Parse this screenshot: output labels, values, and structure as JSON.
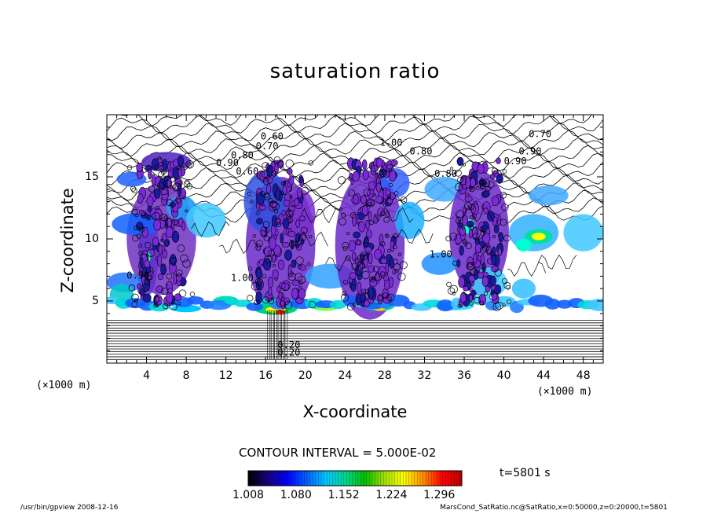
{
  "chart_data": {
    "type": "heatmap",
    "title": "saturation ratio",
    "xlabel": "X-coordinate",
    "ylabel": "Z-coordinate",
    "x_unit": "(×1000 m)",
    "y_unit": "(×1000 m)",
    "xlim": [
      0,
      50
    ],
    "ylim": [
      0,
      20
    ],
    "x_ticks": [
      "4",
      "8",
      "12",
      "16",
      "20",
      "24",
      "28",
      "32",
      "36",
      "40",
      "44",
      "48"
    ],
    "y_ticks": [
      "5",
      "10",
      "15"
    ],
    "contour_interval_text": "CONTOUR INTERVAL = 5.000E-02",
    "contour_labels": [
      "0.60",
      "0.70",
      "0.80",
      "0.90",
      "1.00",
      "0.70",
      "0.90",
      "0.80",
      "0.80",
      "0.90",
      "0.60",
      "0.90",
      "1.00",
      "1.00",
      "0.20",
      "0.20"
    ],
    "colorbar": {
      "ticks": [
        "1.008",
        "1.080",
        "1.152",
        "1.224",
        "1.296"
      ],
      "min": 1.008,
      "max": 1.33,
      "colors": [
        "#000000",
        "#1a0080",
        "#0000ff",
        "#0060ff",
        "#00c8ff",
        "#00d890",
        "#00c000",
        "#a0e000",
        "#ffff00",
        "#ff9000",
        "#ff0000",
        "#c00000"
      ]
    },
    "time_label": "t=5801 s"
  },
  "footer": {
    "left": "/usr/bin/gpview   2008-12-16",
    "right": "MarsCond_SatRatio.nc@SatRatio,x=0:50000,z=0:20000,t=5801"
  }
}
